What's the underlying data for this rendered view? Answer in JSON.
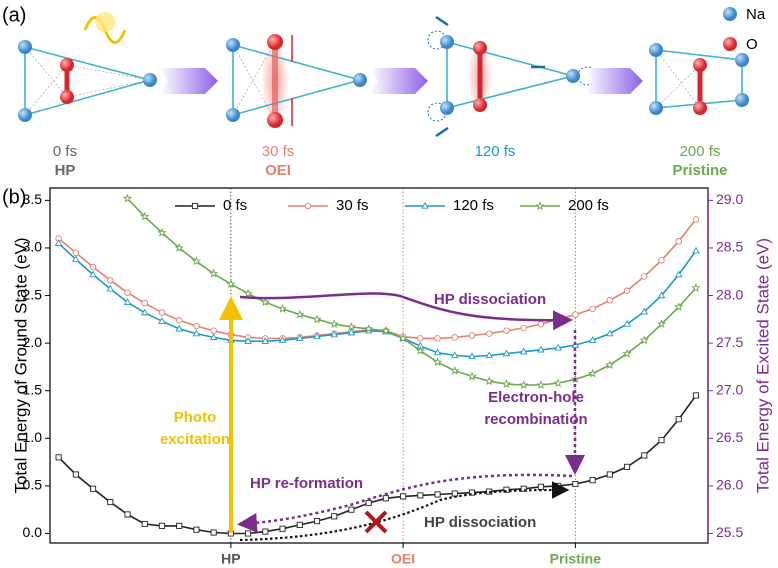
{
  "panel_a": {
    "label": "(a)",
    "legend": [
      "Na",
      "O"
    ],
    "states": [
      {
        "time": "0 fs",
        "name": "HP"
      },
      {
        "time": "30 fs",
        "name": "OEI"
      },
      {
        "time": "120 fs",
        "name": null
      },
      {
        "time": "200 fs",
        "name": "Pristine"
      }
    ]
  },
  "chart_data": {
    "type": "line",
    "panel_label": "(b)",
    "ylabel": "Total Energy of Ground State (eV)",
    "y2label": "Total Energy of Excited State (eV)",
    "x": [
      0,
      0.1,
      0.2,
      0.3,
      0.4,
      0.5,
      0.6,
      0.7,
      0.8,
      0.9,
      1,
      1.1,
      1.2,
      1.3,
      1.4,
      1.5,
      1.6,
      1.7,
      1.8,
      1.9,
      2,
      2.1,
      2.2,
      2.3,
      2.4,
      2.5,
      2.6,
      2.7,
      2.8,
      2.9,
      3,
      3.1,
      3.2,
      3.3,
      3.4,
      3.5,
      3.6,
      3.7
    ],
    "xlim": [
      -0.05,
      3.77
    ],
    "xticks": [
      {
        "value": 1,
        "label": "HP"
      },
      {
        "value": 2,
        "label": "OEI"
      },
      {
        "value": 3,
        "label": "Pristine"
      }
    ],
    "ylim": [
      -0.1,
      3.63
    ],
    "yticks": [
      {
        "value": 0,
        "label": "0.0"
      },
      0.5,
      {
        "value": 1,
        "label": "1.0"
      },
      1.5,
      {
        "value": 2,
        "label": "2.0"
      },
      2.5,
      {
        "value": 3,
        "label": "3.0"
      },
      3.5
    ],
    "y2lim": [
      25.4,
      29.13
    ],
    "y2ticks": [
      25.5,
      {
        "value": 26,
        "label": "26.0"
      },
      26.5,
      {
        "value": 27,
        "label": "27.0"
      },
      27.5,
      {
        "value": 28,
        "label": "28.0"
      },
      28.5,
      {
        "value": 29,
        "label": "29.0"
      }
    ],
    "series": [
      {
        "name": "0 fs",
        "color": "#222222",
        "marker": "square",
        "values": [
          0.8,
          0.62,
          0.47,
          0.33,
          0.2,
          0.1,
          0.08,
          0.08,
          0.04,
          0.01,
          0,
          0,
          0.02,
          0.05,
          0.09,
          0.13,
          0.18,
          0.25,
          0.32,
          0.37,
          0.39,
          0.4,
          0.41,
          0.42,
          0.43,
          0.44,
          0.46,
          0.47,
          0.49,
          0.5,
          0.52,
          0.56,
          0.62,
          0.7,
          0.82,
          0.98,
          1.2,
          1.45
        ]
      },
      {
        "name": "30 fs",
        "color": "#e8806e",
        "marker": "circle",
        "values": [
          3.1,
          2.95,
          2.8,
          2.66,
          2.53,
          2.42,
          2.32,
          2.24,
          2.18,
          2.13,
          2.09,
          2.06,
          2.05,
          2.05,
          2.06,
          2.08,
          2.1,
          2.12,
          2.14,
          2.13,
          2.07,
          2.05,
          2.05,
          2.06,
          2.08,
          2.1,
          2.13,
          2.16,
          2.2,
          2.25,
          2.3,
          2.36,
          2.45,
          2.55,
          2.7,
          2.87,
          3.07,
          3.3
        ]
      },
      {
        "name": "120 fs",
        "color": "#1a9bc7",
        "marker": "triangle",
        "values": [
          3.05,
          2.88,
          2.72,
          2.57,
          2.43,
          2.32,
          2.23,
          2.15,
          2.1,
          2.06,
          2.03,
          2.02,
          2.02,
          2.03,
          2.05,
          2.07,
          2.09,
          2.11,
          2.13,
          2.12,
          2.05,
          1.97,
          1.9,
          1.87,
          1.86,
          1.87,
          1.89,
          1.91,
          1.93,
          1.95,
          1.98,
          2.03,
          2.1,
          2.2,
          2.33,
          2.5,
          2.72,
          2.97
        ]
      },
      {
        "name": "200 fs",
        "color": "#6aaa4c",
        "marker": "star",
        "values": [
          null,
          null,
          null,
          null,
          3.52,
          3.33,
          3.16,
          3.0,
          2.86,
          2.73,
          2.62,
          2.52,
          2.43,
          2.36,
          2.3,
          2.25,
          2.2,
          2.17,
          2.15,
          2.13,
          2.05,
          1.92,
          1.8,
          1.71,
          1.65,
          1.6,
          1.57,
          1.56,
          1.56,
          1.58,
          1.62,
          1.68,
          1.77,
          1.89,
          2.03,
          2.2,
          2.38,
          2.58
        ]
      }
    ],
    "annotations": [
      {
        "lines": [
          "Photo",
          "excitation"
        ],
        "color": "#f2c200"
      },
      {
        "lines": [
          "HP dissociation"
        ],
        "color": "#7b2d8e"
      },
      {
        "lines": [
          "Electron-hole",
          "recombination"
        ],
        "color": "#7b2d8e"
      },
      {
        "lines": [
          "HP re-formation"
        ],
        "color": "#7b2d8e"
      },
      {
        "lines": [
          "HP dissociation"
        ],
        "color": "#444444"
      }
    ]
  }
}
